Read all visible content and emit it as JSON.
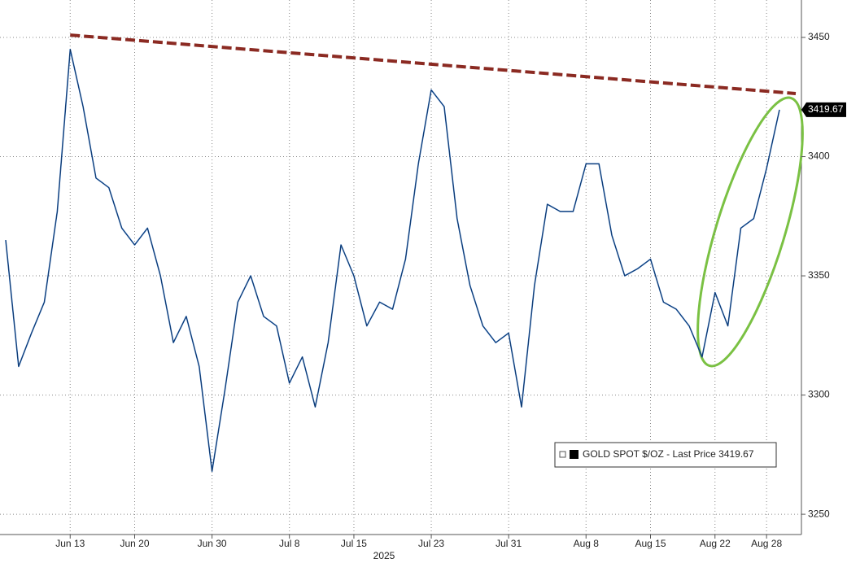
{
  "chart_data": {
    "type": "line",
    "x": [
      "2025-06-06",
      "2025-06-09",
      "2025-06-10",
      "2025-06-11",
      "2025-06-12",
      "2025-06-13",
      "2025-06-16",
      "2025-06-17",
      "2025-06-18",
      "2025-06-19",
      "2025-06-20",
      "2025-06-23",
      "2025-06-24",
      "2025-06-25",
      "2025-06-26",
      "2025-06-27",
      "2025-06-30",
      "2025-07-01",
      "2025-07-02",
      "2025-07-03",
      "2025-07-04",
      "2025-07-07",
      "2025-07-08",
      "2025-07-09",
      "2025-07-10",
      "2025-07-11",
      "2025-07-14",
      "2025-07-15",
      "2025-07-16",
      "2025-07-17",
      "2025-07-18",
      "2025-07-21",
      "2025-07-22",
      "2025-07-23",
      "2025-07-24",
      "2025-07-25",
      "2025-07-28",
      "2025-07-29",
      "2025-07-30",
      "2025-07-31",
      "2025-08-01",
      "2025-08-04",
      "2025-08-05",
      "2025-08-06",
      "2025-08-07",
      "2025-08-08",
      "2025-08-11",
      "2025-08-12",
      "2025-08-13",
      "2025-08-14",
      "2025-08-15",
      "2025-08-18",
      "2025-08-19",
      "2025-08-20",
      "2025-08-21",
      "2025-08-22",
      "2025-08-25",
      "2025-08-26",
      "2025-08-27",
      "2025-08-28",
      "2025-08-29"
    ],
    "series": [
      {
        "name": "GOLD SPOT $/OZ - Last Price 3419.67",
        "color": "#1f5fb0",
        "values": [
          3365,
          3312,
          3326,
          3339,
          3377,
          3445,
          3421,
          3391,
          3387,
          3370,
          3363,
          3370,
          3350,
          3322,
          3333,
          3312,
          3268,
          3302,
          3339,
          3350,
          3333,
          3329,
          3305,
          3316,
          3295,
          3322,
          3363,
          3350,
          3329,
          3339,
          3336,
          3357,
          3397,
          3428,
          3421,
          3374,
          3346,
          3329,
          3322,
          3326,
          3295,
          3346,
          3380,
          3377,
          3377,
          3397,
          3397,
          3367,
          3350,
          3353,
          3357,
          3339,
          3336,
          3329,
          3316,
          3343,
          3329,
          3370,
          3374,
          3395,
          3419.67
        ]
      }
    ],
    "trendline": {
      "x": [
        "2025-06-13",
        "2025-08-29"
      ],
      "values": [
        3451,
        3427
      ],
      "color": "#8b2a22"
    },
    "xlabel": "2025",
    "xticks": [
      {
        "value": "2025-06-13",
        "label": "Jun 13"
      },
      {
        "value": "2025-06-20",
        "label": "Jun 20"
      },
      {
        "value": "2025-06-30",
        "label": "Jun 30"
      },
      {
        "value": "2025-07-08",
        "label": "Jul 8"
      },
      {
        "value": "2025-07-15",
        "label": "Jul 15"
      },
      {
        "value": "2025-07-23",
        "label": "Jul 23"
      },
      {
        "value": "2025-07-31",
        "label": "Jul 31"
      },
      {
        "value": "2025-08-08",
        "label": "Aug 8"
      },
      {
        "value": "2025-08-15",
        "label": "Aug 15"
      },
      {
        "value": "2025-08-22",
        "label": "Aug 22"
      },
      {
        "value": "2025-08-28",
        "label": "Aug 28"
      }
    ],
    "ylim": [
      3241.5,
      3465.7
    ],
    "yticks": [
      3250,
      3300,
      3350,
      3400,
      3450
    ],
    "grid": true
  }
}
